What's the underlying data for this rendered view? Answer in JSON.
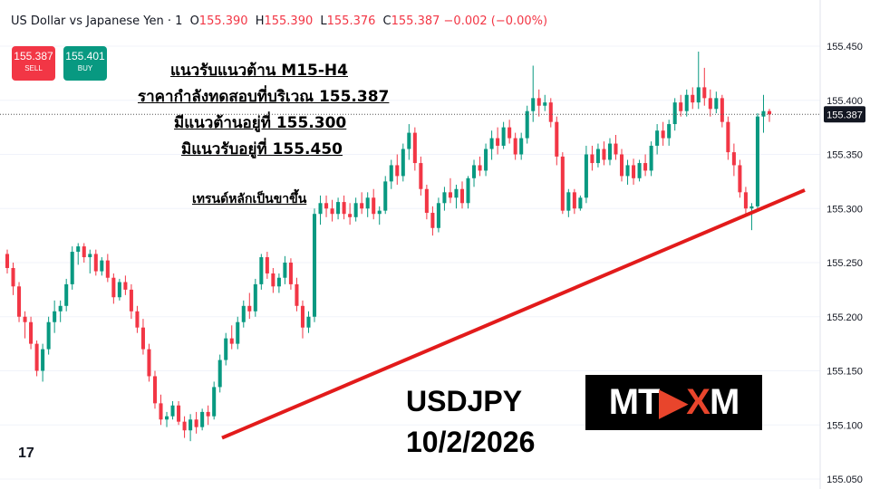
{
  "header": {
    "symbol": "US Dollar vs Japanese Yen · 1",
    "open_label": "O",
    "open": "155.390",
    "high_label": "H",
    "high": "155.390",
    "low_label": "L",
    "low": "155.376",
    "close_label": "C",
    "close": "155.387",
    "change": "−0.002 (−0.00%)"
  },
  "trade": {
    "sell_price": "155.387",
    "sell_label": "SELL",
    "buy_price": "155.401",
    "buy_label": "BUY"
  },
  "notes": {
    "line1": "แนวรับแนวต้าน M15-H4",
    "line2": "ราคากำลังทดสอบที่บริเวณ 155.387",
    "line3": "มีแนวต้านอยู่ที่  155.300",
    "line4": "มิแนวรับอยู่ที่ 155.450",
    "line5": "เทรนด์หลักเป็นขาขึ้น"
  },
  "pair": "USDJPY",
  "date": "10/2/2026",
  "logo": {
    "left": "MT",
    "mid": "X",
    "right": "M"
  },
  "tv_mark": "17",
  "colors": {
    "up": "#089981",
    "down": "#f23645",
    "trend": "#e21b1b"
  },
  "chart_data": {
    "type": "candlestick",
    "ylim": [
      155.05,
      155.47
    ],
    "yticks": [
      "155.450",
      "155.400",
      "155.350",
      "155.300",
      "155.250",
      "155.200",
      "155.150",
      "155.100",
      "155.050"
    ],
    "last_price": "155.387",
    "last_price_value": 155.387,
    "trendline": [
      [
        0,
        155.088
      ],
      [
        1,
        155.317
      ]
    ],
    "candles": [
      [
        155.258,
        155.262,
        155.24,
        155.245
      ],
      [
        155.245,
        155.25,
        155.22,
        155.228
      ],
      [
        155.228,
        155.232,
        155.195,
        155.2
      ],
      [
        155.2,
        155.205,
        155.18,
        155.195
      ],
      [
        155.195,
        155.2,
        155.17,
        155.175
      ],
      [
        155.175,
        155.178,
        155.145,
        155.15
      ],
      [
        155.15,
        155.175,
        155.14,
        155.17
      ],
      [
        155.17,
        155.2,
        155.165,
        155.195
      ],
      [
        155.195,
        155.215,
        155.185,
        155.205
      ],
      [
        155.205,
        155.215,
        155.195,
        155.21
      ],
      [
        155.21,
        155.235,
        155.205,
        155.23
      ],
      [
        155.23,
        155.265,
        155.225,
        155.26
      ],
      [
        155.26,
        155.268,
        155.248,
        155.265
      ],
      [
        155.265,
        155.268,
        155.25,
        155.255
      ],
      [
        155.255,
        155.262,
        155.24,
        155.258
      ],
      [
        155.258,
        155.262,
        155.238,
        155.242
      ],
      [
        155.242,
        155.255,
        155.238,
        155.252
      ],
      [
        155.252,
        155.258,
        155.232,
        155.236
      ],
      [
        155.236,
        155.24,
        155.212,
        155.218
      ],
      [
        155.218,
        155.235,
        155.215,
        155.232
      ],
      [
        155.232,
        155.238,
        155.22,
        155.225
      ],
      [
        155.225,
        155.23,
        155.198,
        155.205
      ],
      [
        155.205,
        155.21,
        155.185,
        155.19
      ],
      [
        155.19,
        155.198,
        155.165,
        155.17
      ],
      [
        155.17,
        155.175,
        155.14,
        155.145
      ],
      [
        155.145,
        155.15,
        155.115,
        155.12
      ],
      [
        155.12,
        155.128,
        155.1,
        155.105
      ],
      [
        155.105,
        155.112,
        155.098,
        155.108
      ],
      [
        155.108,
        155.122,
        155.105,
        155.118
      ],
      [
        155.118,
        155.122,
        155.1,
        155.103
      ],
      [
        155.103,
        155.108,
        155.088,
        155.095
      ],
      [
        155.095,
        155.11,
        155.085,
        155.105
      ],
      [
        155.105,
        155.112,
        155.092,
        155.098
      ],
      [
        155.098,
        155.115,
        155.095,
        155.112
      ],
      [
        155.112,
        155.118,
        155.1,
        155.108
      ],
      [
        155.108,
        155.14,
        155.105,
        155.135
      ],
      [
        155.135,
        155.165,
        155.13,
        155.16
      ],
      [
        155.16,
        155.185,
        155.155,
        155.18
      ],
      [
        155.18,
        155.192,
        155.17,
        155.175
      ],
      [
        155.175,
        155.2,
        155.17,
        155.195
      ],
      [
        155.195,
        155.215,
        155.19,
        155.21
      ],
      [
        155.21,
        155.222,
        155.198,
        155.205
      ],
      [
        155.205,
        155.235,
        155.2,
        155.23
      ],
      [
        155.23,
        155.258,
        155.225,
        155.255
      ],
      [
        155.255,
        155.26,
        155.235,
        155.24
      ],
      [
        155.24,
        155.245,
        155.222,
        155.228
      ],
      [
        155.228,
        155.24,
        155.222,
        155.236
      ],
      [
        155.236,
        155.256,
        155.23,
        155.25
      ],
      [
        155.25,
        155.254,
        155.225,
        155.23
      ],
      [
        155.23,
        155.236,
        155.205,
        155.21
      ],
      [
        155.21,
        155.215,
        155.18,
        155.19
      ],
      [
        155.19,
        155.205,
        155.185,
        155.2
      ],
      [
        155.2,
        155.3,
        155.195,
        155.295
      ],
      [
        155.295,
        155.312,
        155.285,
        155.305
      ],
      [
        155.305,
        155.312,
        155.292,
        155.3
      ],
      [
        155.3,
        155.308,
        155.288,
        155.295
      ],
      [
        155.295,
        155.31,
        155.29,
        155.306
      ],
      [
        155.306,
        155.312,
        155.29,
        155.295
      ],
      [
        155.295,
        155.305,
        155.285,
        155.292
      ],
      [
        155.292,
        155.31,
        155.288,
        155.305
      ],
      [
        155.305,
        155.315,
        155.295,
        155.3
      ],
      [
        155.3,
        155.315,
        155.292,
        155.31
      ],
      [
        155.31,
        155.318,
        155.29,
        155.295
      ],
      [
        155.295,
        155.302,
        155.285,
        155.298
      ],
      [
        155.298,
        155.33,
        155.295,
        155.325
      ],
      [
        155.325,
        155.345,
        155.318,
        155.34
      ],
      [
        155.34,
        155.35,
        155.322,
        155.33
      ],
      [
        155.33,
        155.36,
        155.325,
        155.355
      ],
      [
        155.355,
        155.378,
        155.345,
        155.37
      ],
      [
        155.37,
        155.375,
        155.335,
        155.342
      ],
      [
        155.342,
        155.348,
        155.312,
        155.318
      ],
      [
        155.318,
        155.322,
        155.29,
        155.296
      ],
      [
        155.296,
        155.302,
        155.275,
        155.282
      ],
      [
        155.282,
        155.31,
        155.278,
        155.305
      ],
      [
        155.305,
        155.32,
        155.298,
        155.315
      ],
      [
        155.315,
        155.328,
        155.305,
        155.31
      ],
      [
        155.31,
        155.322,
        155.3,
        155.318
      ],
      [
        155.318,
        155.325,
        155.3,
        155.305
      ],
      [
        155.305,
        155.33,
        155.3,
        155.328
      ],
      [
        155.328,
        155.345,
        155.32,
        155.34
      ],
      [
        155.34,
        155.348,
        155.33,
        155.335
      ],
      [
        155.335,
        155.36,
        155.33,
        155.355
      ],
      [
        155.355,
        155.372,
        155.345,
        155.365
      ],
      [
        155.365,
        155.375,
        155.35,
        155.358
      ],
      [
        155.358,
        155.38,
        155.355,
        155.375
      ],
      [
        155.375,
        155.382,
        155.36,
        155.365
      ],
      [
        155.365,
        155.37,
        155.345,
        155.35
      ],
      [
        155.35,
        155.37,
        155.345,
        155.365
      ],
      [
        155.365,
        155.395,
        155.36,
        155.39
      ],
      [
        155.39,
        155.432,
        155.38,
        155.402
      ],
      [
        155.402,
        155.41,
        155.385,
        155.395
      ],
      [
        155.395,
        155.405,
        155.39,
        155.398
      ],
      [
        155.398,
        155.402,
        155.375,
        155.38
      ],
      [
        155.38,
        155.385,
        155.34,
        155.348
      ],
      [
        155.348,
        155.352,
        155.295,
        155.298
      ],
      [
        155.298,
        155.318,
        155.292,
        155.315
      ],
      [
        155.315,
        155.318,
        155.295,
        155.3
      ],
      [
        155.3,
        155.312,
        155.298,
        155.31
      ],
      [
        155.31,
        155.358,
        155.305,
        155.35
      ],
      [
        155.35,
        155.358,
        155.335,
        155.342
      ],
      [
        155.342,
        155.36,
        155.338,
        155.355
      ],
      [
        155.355,
        155.362,
        155.34,
        155.345
      ],
      [
        155.345,
        155.365,
        155.34,
        155.36
      ],
      [
        155.36,
        155.368,
        155.345,
        155.35
      ],
      [
        155.35,
        155.355,
        155.325,
        155.33
      ],
      [
        155.33,
        155.345,
        155.322,
        155.34
      ],
      [
        155.34,
        155.346,
        155.322,
        155.328
      ],
      [
        155.328,
        155.345,
        155.325,
        155.342
      ],
      [
        155.342,
        155.35,
        155.33,
        155.335
      ],
      [
        155.335,
        155.362,
        155.33,
        155.358
      ],
      [
        155.358,
        155.378,
        155.35,
        155.372
      ],
      [
        155.372,
        155.38,
        155.358,
        155.365
      ],
      [
        155.365,
        155.382,
        155.358,
        155.378
      ],
      [
        155.378,
        155.402,
        155.372,
        155.398
      ],
      [
        155.398,
        155.405,
        155.385,
        155.39
      ],
      [
        155.39,
        155.41,
        155.385,
        155.405
      ],
      [
        155.405,
        155.412,
        155.392,
        155.398
      ],
      [
        155.398,
        155.445,
        155.392,
        155.412
      ],
      [
        155.412,
        155.43,
        155.395,
        155.402
      ],
      [
        155.402,
        155.41,
        155.385,
        155.392
      ],
      [
        155.392,
        155.408,
        155.388,
        155.402
      ],
      [
        155.402,
        155.405,
        155.375,
        155.38
      ],
      [
        155.38,
        155.385,
        155.345,
        155.352
      ],
      [
        155.352,
        155.36,
        155.33,
        155.34
      ],
      [
        155.34,
        155.345,
        155.31,
        155.315
      ],
      [
        155.315,
        155.32,
        155.295,
        155.3
      ],
      [
        155.3,
        155.305,
        155.28,
        155.302
      ],
      [
        155.302,
        155.388,
        155.298,
        155.385
      ],
      [
        155.385,
        155.405,
        155.37,
        155.39
      ],
      [
        155.39,
        155.392,
        155.38,
        155.387
      ]
    ]
  }
}
